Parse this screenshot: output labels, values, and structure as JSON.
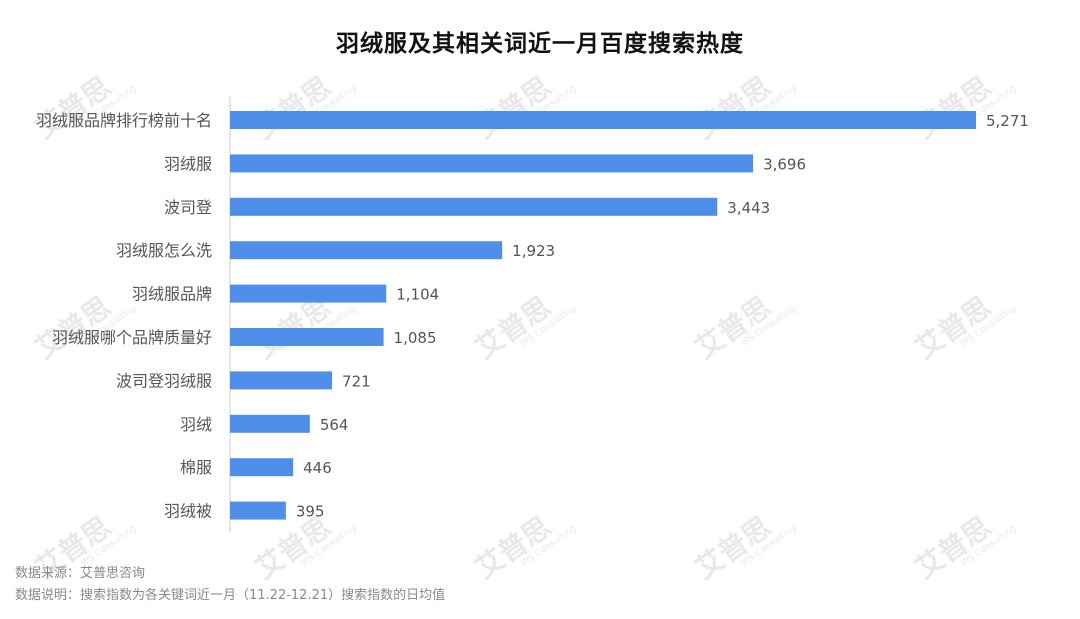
{
  "watermark_text": "艾普思",
  "watermark_sub": "IPS Consulting",
  "footnote": {
    "source": "数据来源：艾普思咨询",
    "note": "数据说明：搜索指数为各关键词近一月（11.22-12.21）搜索指数的日均值"
  },
  "chart_data": {
    "type": "bar",
    "orientation": "horizontal",
    "title": "羽绒服及其相关词近一月百度搜索热度",
    "xlabel": "",
    "ylabel": "",
    "xlim": [
      0,
      5400
    ],
    "grid": false,
    "legend": "none",
    "color": "#4f8fea",
    "categories": [
      "羽绒服品牌排行榜前十名",
      "羽绒服",
      "波司登",
      "羽绒服怎么洗",
      "羽绒服品牌",
      "羽绒服哪个品牌质量好",
      "波司登羽绒服",
      "羽绒",
      "棉服",
      "羽绒被"
    ],
    "values": [
      5271,
      3696,
      3443,
      1923,
      1104,
      1085,
      721,
      564,
      446,
      395
    ],
    "value_labels": [
      "5,271",
      "3,696",
      "3,443",
      "1,923",
      "1,104",
      "1,085",
      "721",
      "564",
      "446",
      "395"
    ]
  }
}
